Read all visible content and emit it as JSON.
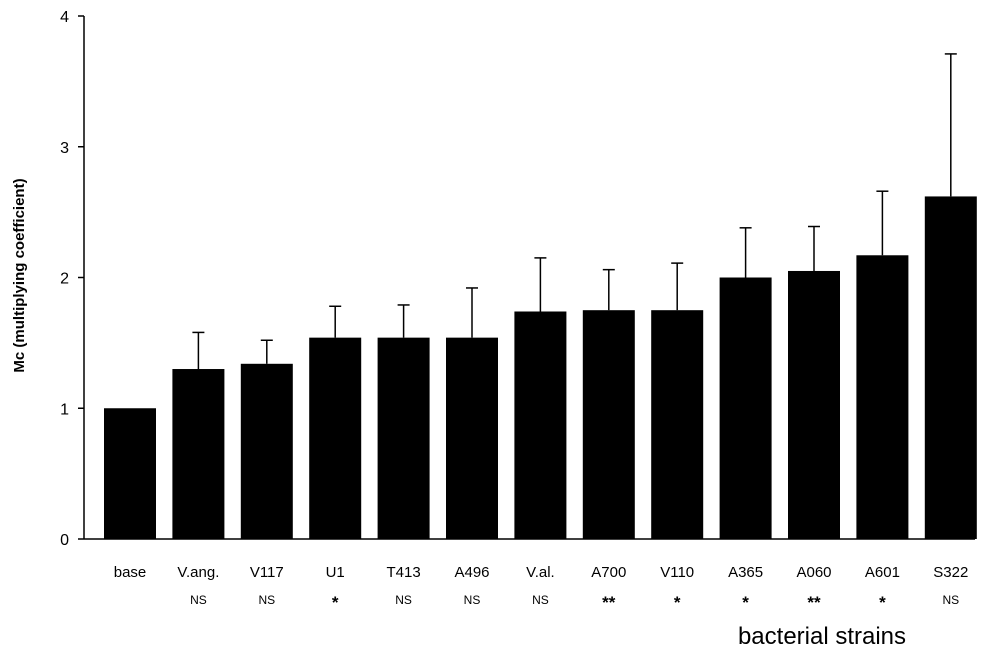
{
  "chart_data": {
    "type": "bar",
    "title": "",
    "xlabel": "bacterial strains",
    "ylabel": "Mc (multiplying coefficient)",
    "ylim": [
      0,
      4
    ],
    "yticks": [
      0,
      1,
      2,
      3,
      4
    ],
    "grid": false,
    "legend": "none",
    "bar_color": "#000000",
    "categories": [
      "base",
      "V.ang.",
      "V117",
      "U1",
      "T413",
      "A496",
      "V.al.",
      "A700",
      "V110",
      "A365",
      "A060",
      "A601",
      "S322"
    ],
    "values": [
      1.0,
      1.3,
      1.34,
      1.54,
      1.54,
      1.54,
      1.74,
      1.75,
      1.75,
      2.0,
      2.05,
      2.17,
      2.62
    ],
    "error_upper": [
      1.0,
      1.58,
      1.52,
      1.78,
      1.79,
      1.92,
      2.15,
      2.06,
      2.11,
      2.38,
      2.39,
      2.66,
      3.71
    ],
    "significance": [
      "",
      "NS",
      "NS",
      "*",
      "NS",
      "NS",
      "NS",
      "**",
      "*",
      "*",
      "**",
      "*",
      "NS"
    ]
  }
}
